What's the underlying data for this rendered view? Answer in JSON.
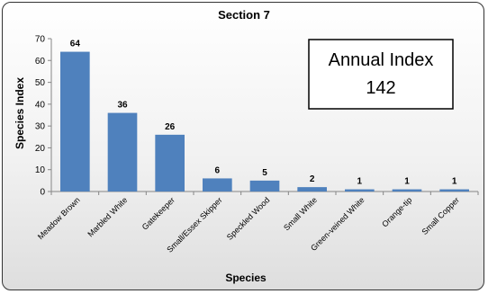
{
  "chart_data": {
    "type": "bar",
    "title": "Section 7",
    "xlabel": "Species",
    "ylabel": "Species Index",
    "ylim": [
      0,
      70
    ],
    "yticks": [
      0,
      10,
      20,
      30,
      40,
      50,
      60,
      70
    ],
    "categories": [
      "Meadow Brown",
      "Marbled White",
      "Gatekeeper",
      "Small/Essex Skipper",
      "Speckled Wood",
      "Small White",
      "Green-veined White",
      "Orange-tip",
      "Small Copper"
    ],
    "values": [
      64,
      36,
      26,
      6,
      5,
      2,
      1,
      1,
      1
    ],
    "bar_color": "#4f81bd",
    "grid": false,
    "legend": "none",
    "annotation": {
      "line1": "Annual Index",
      "line2": "142"
    }
  }
}
